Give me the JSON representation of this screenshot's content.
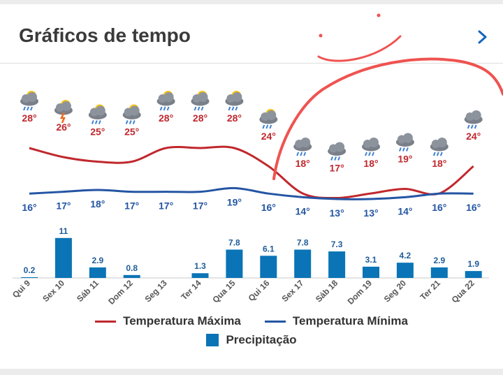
{
  "header": {
    "title": "Gráficos de tempo"
  },
  "colors": {
    "max": "#c0282d",
    "min": "#2455a4",
    "precip": "#0a74b6",
    "annotation": "#ef5350"
  },
  "legend": {
    "max_label": "Temperatura Máxima",
    "min_label": "Temperatura Mínima",
    "precip_label": "Precipitação"
  },
  "chart_data": {
    "type": "line+bar",
    "categories": [
      "Qui 9",
      "Sex 10",
      "Sáb 11",
      "Dom 12",
      "Seg 13",
      "Ter 14",
      "Qua 15",
      "Qui 16",
      "Sex 17",
      "Sáb 18",
      "Dom 19",
      "Seg 20",
      "Ter 21",
      "Qua 22"
    ],
    "series": [
      {
        "name": "Temperatura Máxima",
        "type": "line",
        "values": [
          28,
          26,
          25,
          25,
          28,
          28,
          28,
          24,
          18,
          17,
          18,
          19,
          18,
          24
        ]
      },
      {
        "name": "Temperatura Mínima",
        "type": "line",
        "values": [
          16,
          17,
          18,
          17,
          17,
          17,
          19,
          16,
          14,
          13,
          13,
          14,
          16,
          16
        ]
      },
      {
        "name": "Precipitação",
        "type": "bar",
        "values": [
          0.2,
          11,
          2.9,
          0.8,
          null,
          1.3,
          7.8,
          6.1,
          7.8,
          7.3,
          3.1,
          4.2,
          2.9,
          1.9
        ]
      }
    ],
    "icons": [
      "partly-cloudy-rain",
      "thunderstorm",
      "partly-cloudy-rain",
      "partly-cloudy-rain",
      "partly-cloudy-rain",
      "partly-cloudy-rain",
      "partly-cloudy-rain",
      "partly-cloudy-rain",
      "rain",
      "rain",
      "rain",
      "rain",
      "rain",
      "rain"
    ],
    "max_labels": [
      "28°",
      "26°",
      "25°",
      "25°",
      "28°",
      "28°",
      "28°",
      "24°",
      "18°",
      "17°",
      "18°",
      "19°",
      "18°",
      "24°"
    ],
    "min_labels": [
      "16°",
      "17°",
      "18°",
      "17°",
      "17°",
      "17°",
      "19°",
      "16°",
      "14°",
      "13°",
      "13°",
      "14°",
      "16°",
      "16°"
    ],
    "precip_labels": [
      "0.2",
      "11",
      "2.9",
      "0.8",
      "",
      "1.3",
      "7.8",
      "6.1",
      "7.8",
      "7.3",
      "3.1",
      "4.2",
      "2.9",
      "1.9"
    ],
    "legend_position": "bottom"
  }
}
